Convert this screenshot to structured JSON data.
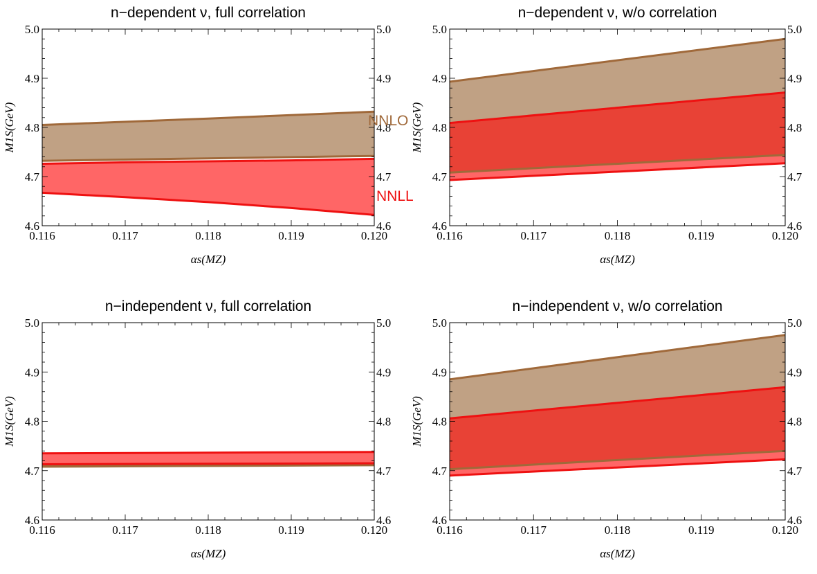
{
  "colors": {
    "nnlo": "#A0693A",
    "nnlo_fill": "#C0A184",
    "nnll": "#EE1111",
    "nnll_fill": "#FF6666",
    "overlap_fill": "#E84236",
    "axis": "#000000"
  },
  "chart_data": [
    {
      "type": "area",
      "title": "n−dependent ν,  full correlation",
      "xlabel": "αs(MZ)",
      "ylabel": "M1S(GeV)",
      "xlim": [
        0.116,
        0.12
      ],
      "ylim": [
        4.6,
        5.0
      ],
      "x_ticks": [
        "0.116",
        "0.117",
        "0.118",
        "0.119",
        "0.120"
      ],
      "y_ticks": [
        "4.6",
        "4.7",
        "4.8",
        "4.9",
        "5.0"
      ],
      "grid": false,
      "series": [
        {
          "name": "NNLO",
          "x": [
            0.116,
            0.118,
            0.12
          ],
          "upper": [
            4.805,
            4.818,
            4.832
          ],
          "lower": [
            4.732,
            4.737,
            4.742
          ]
        },
        {
          "name": "NNLL",
          "x": [
            0.116,
            0.117,
            0.118,
            0.119,
            0.12
          ],
          "upper": [
            4.726,
            4.729,
            4.731,
            4.733,
            4.736
          ],
          "lower": [
            4.667,
            4.658,
            4.648,
            4.636,
            4.622
          ]
        }
      ],
      "annotations": [
        "NNLO",
        "NNLL"
      ]
    },
    {
      "type": "area",
      "title": "n−dependent ν,  w/o correlation",
      "xlabel": "αs(MZ)",
      "ylabel": "M1S(GeV)",
      "xlim": [
        0.116,
        0.12
      ],
      "ylim": [
        4.6,
        5.0
      ],
      "x_ticks": [
        "0.116",
        "0.117",
        "0.118",
        "0.119",
        "0.120"
      ],
      "y_ticks": [
        "4.6",
        "4.7",
        "4.8",
        "4.9",
        "5.0"
      ],
      "grid": false,
      "series": [
        {
          "name": "NNLO",
          "x": [
            0.116,
            0.12
          ],
          "upper": [
            4.893,
            4.98
          ],
          "lower": [
            4.708,
            4.744
          ]
        },
        {
          "name": "NNLL",
          "x": [
            0.116,
            0.12
          ],
          "upper": [
            4.809,
            4.871
          ],
          "lower": [
            4.693,
            4.727
          ]
        }
      ]
    },
    {
      "type": "area",
      "title": "n−independent ν,  full correlation",
      "xlabel": "αs(MZ)",
      "ylabel": "M1S(GeV)",
      "xlim": [
        0.116,
        0.12
      ],
      "ylim": [
        4.6,
        5.0
      ],
      "x_ticks": [
        "0.116",
        "0.117",
        "0.118",
        "0.119",
        "0.120"
      ],
      "y_ticks": [
        "4.6",
        "4.7",
        "4.8",
        "4.9",
        "5.0"
      ],
      "grid": false,
      "series": [
        {
          "name": "NNLO",
          "x": [
            0.116,
            0.12
          ],
          "upper": [
            4.711,
            4.715
          ],
          "lower": [
            4.708,
            4.711
          ]
        },
        {
          "name": "NNLL",
          "x": [
            0.116,
            0.12
          ],
          "upper": [
            4.735,
            4.738
          ],
          "lower": [
            4.713,
            4.715
          ]
        }
      ]
    },
    {
      "type": "area",
      "title": "n−independent ν,  w/o correlation",
      "xlabel": "αs(MZ)",
      "ylabel": "M1S(GeV)",
      "xlim": [
        0.116,
        0.12
      ],
      "ylim": [
        4.6,
        5.0
      ],
      "x_ticks": [
        "0.116",
        "0.117",
        "0.118",
        "0.119",
        "0.120"
      ],
      "y_ticks": [
        "4.6",
        "4.7",
        "4.8",
        "4.9",
        "5.0"
      ],
      "grid": false,
      "series": [
        {
          "name": "NNLO",
          "x": [
            0.116,
            0.12
          ],
          "upper": [
            4.885,
            4.975
          ],
          "lower": [
            4.703,
            4.74
          ]
        },
        {
          "name": "NNLL",
          "x": [
            0.116,
            0.12
          ],
          "upper": [
            4.806,
            4.869
          ],
          "lower": [
            4.69,
            4.723
          ]
        }
      ]
    }
  ]
}
